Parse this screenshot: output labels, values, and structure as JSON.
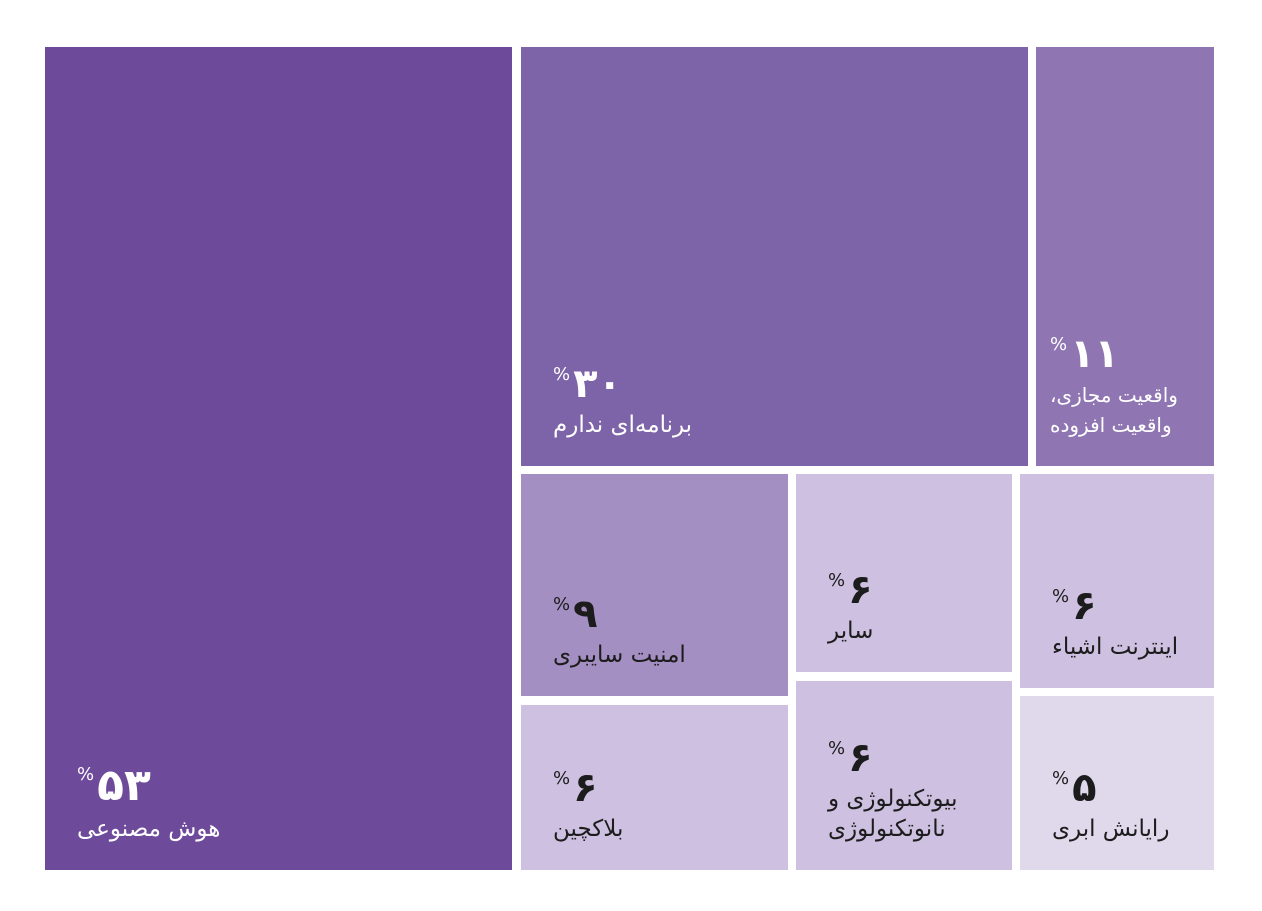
{
  "chart_data": {
    "type": "treemap",
    "percent_sign": "%",
    "items": [
      {
        "label": "هوش مصنوعی",
        "value": 53,
        "value_text": "۵۳",
        "color": "#6e4a9b",
        "text_color": "#ffffff"
      },
      {
        "label": "برنامه‌ای ندارم",
        "value": 30,
        "value_text": "۳۰",
        "color": "#7d63a7",
        "text_color": "#ffffff"
      },
      {
        "label": "واقعیت مجازی، واقعیت افزوده",
        "value": 11,
        "value_text": "۱۱",
        "color": "#8f76b2",
        "text_color": "#ffffff"
      },
      {
        "label": "امنیت سایبری",
        "value": 9,
        "value_text": "۹",
        "color": "#a48fc3",
        "text_color": "#1c1c1c"
      },
      {
        "label": "بلاکچین",
        "value": 6,
        "value_text": "۶",
        "color": "#cdc0e0",
        "text_color": "#1c1c1c"
      },
      {
        "label": "سایر",
        "value": 6,
        "value_text": "۶",
        "color": "#cdc0e0",
        "text_color": "#1c1c1c"
      },
      {
        "label": "بیوتکنولوژی و نانوتکنولوژی",
        "value": 6,
        "value_text": "۶",
        "color": "#cdc0e0",
        "text_color": "#1c1c1c"
      },
      {
        "label": "اینترنت اشیاء",
        "value": 6,
        "value_text": "۶",
        "color": "#cdc0e0",
        "text_color": "#1c1c1c"
      },
      {
        "label": "رایانش ابری",
        "value": 5,
        "value_text": "۵",
        "color": "#e0d8eb",
        "text_color": "#1c1c1c"
      }
    ]
  }
}
